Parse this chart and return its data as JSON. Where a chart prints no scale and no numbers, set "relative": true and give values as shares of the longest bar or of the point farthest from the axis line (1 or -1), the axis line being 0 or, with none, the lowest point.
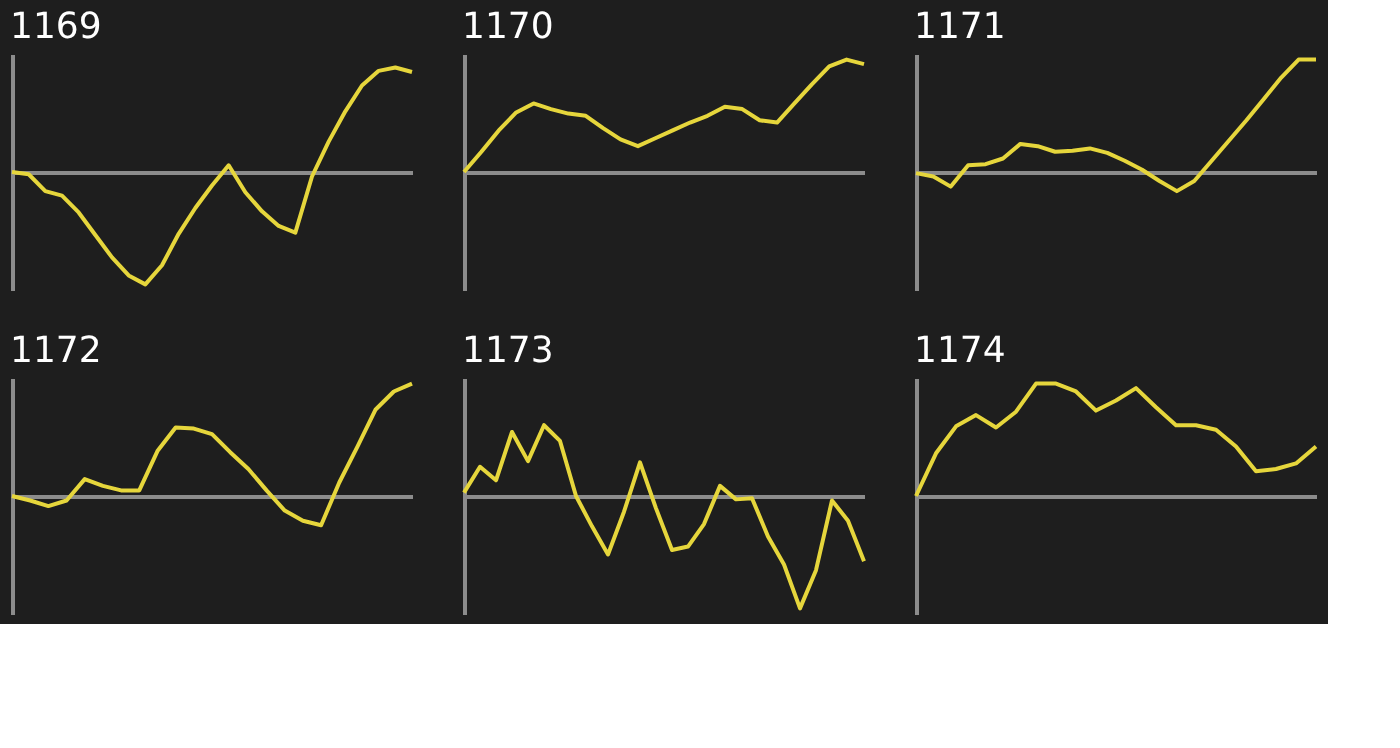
{
  "chart_data": [
    {
      "type": "line",
      "title": "1169",
      "relative": true,
      "color": "#e6d63c",
      "categories": [
        null,
        null,
        null,
        null,
        null,
        null,
        null,
        null,
        null,
        null,
        null,
        null,
        null,
        null,
        null,
        null,
        null,
        null,
        null,
        null,
        null,
        null,
        null,
        null,
        null
      ],
      "values": [
        0,
        -0.02,
        -0.17,
        -0.21,
        -0.36,
        -0.56,
        -0.76,
        -0.92,
        -1,
        -0.83,
        -0.55,
        -0.32,
        -0.12,
        0.06,
        -0.18,
        -0.35,
        -0.48,
        -0.54,
        -0.04,
        0.27,
        0.54,
        0.77,
        0.9,
        0.93,
        0.89
      ]
    },
    {
      "type": "line",
      "title": "1170",
      "relative": true,
      "color": "#e6d63c",
      "categories": [
        null,
        null,
        null,
        null,
        null,
        null,
        null,
        null,
        null,
        null,
        null,
        null,
        null,
        null,
        null,
        null,
        null,
        null,
        null,
        null,
        null,
        null,
        null,
        null
      ],
      "values": [
        0,
        0.18,
        0.37,
        0.53,
        0.61,
        0.56,
        0.52,
        0.5,
        0.39,
        0.29,
        0.23,
        0.3,
        0.37,
        0.44,
        0.5,
        0.58,
        0.56,
        0.46,
        0.44,
        0.61,
        0.78,
        0.94,
        1,
        0.96
      ]
    },
    {
      "type": "line",
      "title": "1171",
      "relative": true,
      "color": "#e6d63c",
      "categories": [
        null,
        null,
        null,
        null,
        null,
        null,
        null,
        null,
        null,
        null,
        null,
        null,
        null,
        null,
        null,
        null,
        null,
        null,
        null,
        null,
        null,
        null,
        null,
        null
      ],
      "values": [
        -0.01,
        -0.04,
        -0.13,
        0.06,
        0.07,
        0.12,
        0.25,
        0.23,
        0.18,
        0.19,
        0.21,
        0.17,
        0.1,
        0.02,
        -0.08,
        -0.17,
        -0.08,
        0.1,
        0.28,
        0.46,
        0.65,
        0.84,
        1,
        1
      ]
    },
    {
      "type": "line",
      "title": "1172",
      "relative": true,
      "color": "#e6d63c",
      "categories": [
        null,
        null,
        null,
        null,
        null,
        null,
        null,
        null,
        null,
        null,
        null,
        null,
        null,
        null,
        null,
        null,
        null,
        null,
        null,
        null,
        null,
        null,
        null
      ],
      "values": [
        0,
        -0.04,
        -0.09,
        -0.04,
        0.15,
        0.09,
        0.05,
        0.05,
        0.4,
        0.61,
        0.6,
        0.55,
        0.39,
        0.24,
        0.05,
        -0.13,
        -0.22,
        -0.26,
        0.12,
        0.44,
        0.77,
        0.93,
        1
      ]
    },
    {
      "type": "line",
      "title": "1173",
      "relative": true,
      "color": "#e6d63c",
      "categories": [
        null,
        null,
        null,
        null,
        null,
        null,
        null,
        null,
        null,
        null,
        null,
        null,
        null,
        null,
        null,
        null,
        null,
        null,
        null,
        null,
        null,
        null,
        null,
        null,
        null,
        null
      ],
      "values": [
        0.03,
        0.26,
        0.14,
        0.57,
        0.31,
        0.63,
        0.49,
        0,
        -0.27,
        -0.52,
        -0.14,
        0.3,
        -0.11,
        -0.48,
        -0.45,
        -0.25,
        0.09,
        -0.03,
        -0.02,
        -0.36,
        -0.61,
        -1,
        -0.66,
        -0.04,
        -0.22,
        -0.58
      ]
    },
    {
      "type": "line",
      "title": "1174",
      "relative": true,
      "color": "#e6d63c",
      "categories": [
        null,
        null,
        null,
        null,
        null,
        null,
        null,
        null,
        null,
        null,
        null,
        null,
        null,
        null,
        null,
        null,
        null,
        null,
        null,
        null,
        null
      ],
      "values": [
        0,
        0.38,
        0.62,
        0.72,
        0.61,
        0.75,
        1,
        1,
        0.93,
        0.76,
        0.85,
        0.96,
        0.79,
        0.63,
        0.63,
        0.59,
        0.44,
        0.22,
        0.24,
        0.29,
        0.44
      ]
    }
  ]
}
